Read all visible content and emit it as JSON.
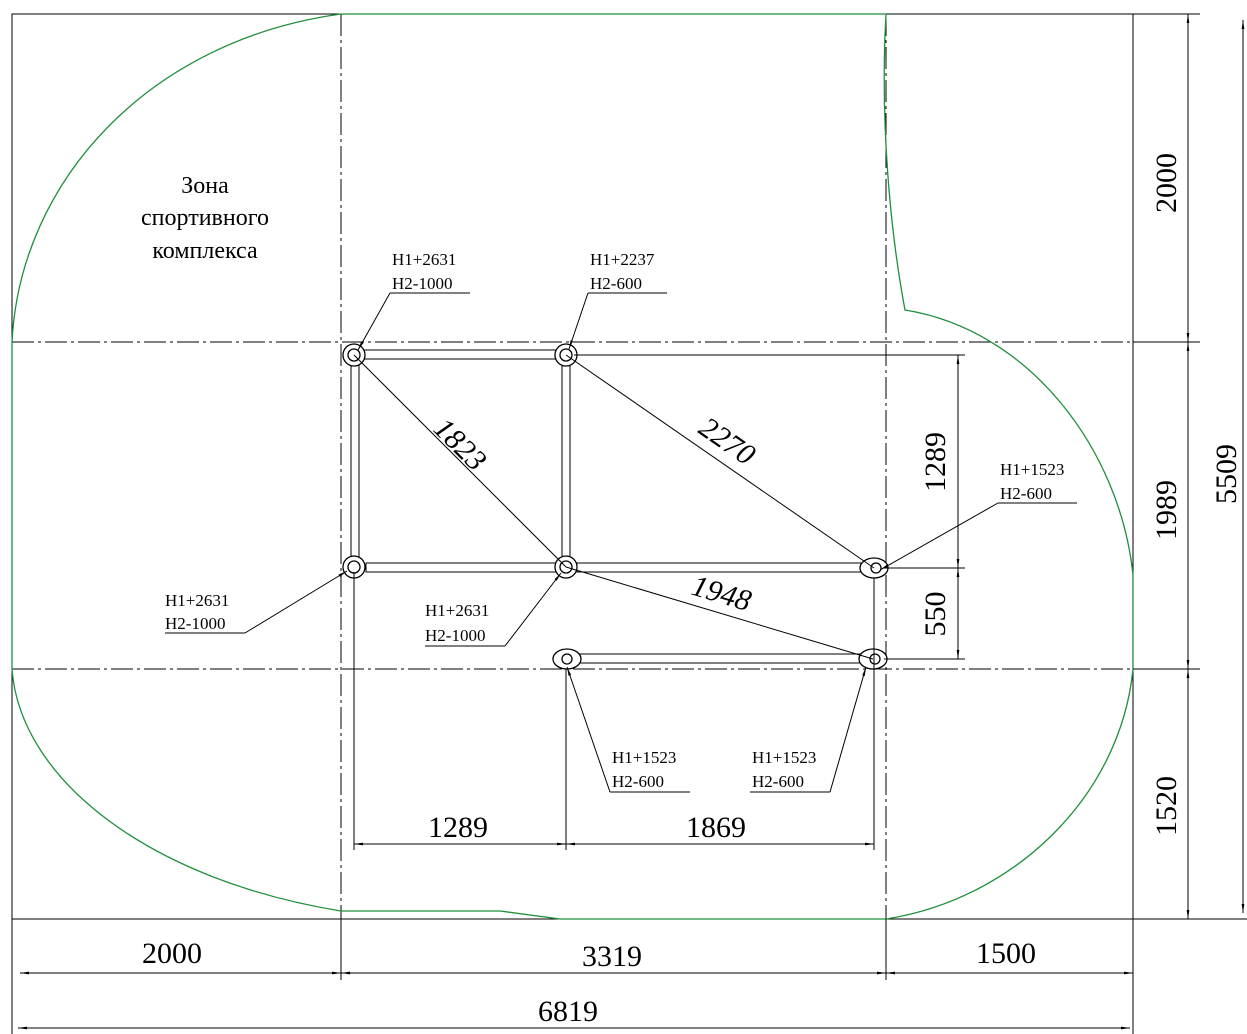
{
  "zone_label": [
    "Зона",
    "спортивного",
    "комплекса"
  ],
  "callouts": [
    {
      "h1": "H1+2631",
      "h2": "H2-1000"
    },
    {
      "h1": "H1+2237",
      "h2": "H2-600"
    },
    {
      "h1": "H1+1523",
      "h2": "H2-600"
    },
    {
      "h1": "H1+2631",
      "h2": "H2-1000"
    },
    {
      "h1": "H1+2631",
      "h2": "H2-1000"
    },
    {
      "h1": "H1+1523",
      "h2": "H2-600"
    },
    {
      "h1": "H1+1523",
      "h2": "H2-600"
    }
  ],
  "diagonals": {
    "d1": "1823",
    "d2": "2270",
    "d3": "1948"
  },
  "dimensions": {
    "bottom_left": "2000",
    "bottom_mid": "3319",
    "bottom_right": "1500",
    "bottom_total": "6819",
    "inner_left": "1289",
    "inner_right": "1869",
    "right_top": "2000",
    "right_mid": "1989",
    "right_bottom": "1520",
    "right_total": "5509",
    "frame_vert_upper": "1289",
    "frame_vert_lower": "550"
  },
  "colors": {
    "zone_outline": "#1f8f3a",
    "lines": "#000000"
  }
}
